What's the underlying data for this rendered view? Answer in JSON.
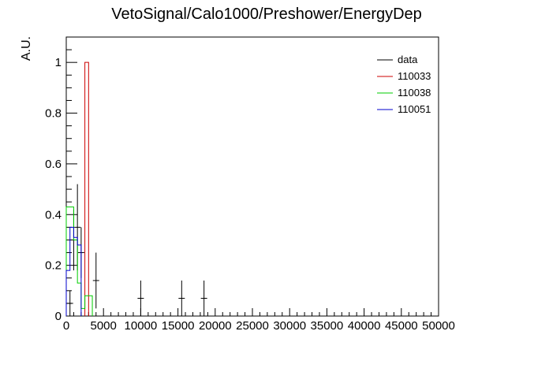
{
  "chart_data": {
    "type": "histogram",
    "title": "VetoSignal/Calo1000/Preshower/EnergyDep",
    "ylabel": "A.U.",
    "xlabel": "",
    "xlim": [
      0,
      50000
    ],
    "ylim": [
      0,
      1.1
    ],
    "x_ticks": [
      "0",
      "5000",
      "10000",
      "15000",
      "20000",
      "25000",
      "30000",
      "35000",
      "40000",
      "45000",
      "50000"
    ],
    "y_ticks": [
      "0",
      "0.2",
      "0.4",
      "0.6",
      "0.8",
      "1"
    ],
    "legend_position": "top-right",
    "series": [
      {
        "name": "data",
        "color": "#000000",
        "style": "points-with-errors",
        "points": [
          {
            "x": 500,
            "y": 0.05,
            "err": 0.05
          },
          {
            "x": 1000,
            "y": 0.3,
            "err": 0.12
          },
          {
            "x": 1500,
            "y": 0.35,
            "err": 0.17
          },
          {
            "x": 2000,
            "y": 0.25,
            "err": 0.1
          },
          {
            "x": 4000,
            "y": 0.14,
            "err": 0.11
          },
          {
            "x": 10000,
            "y": 0.07,
            "err": 0.07
          },
          {
            "x": 15500,
            "y": 0.07,
            "err": 0.07
          },
          {
            "x": 18500,
            "y": 0.07,
            "err": 0.07
          }
        ]
      },
      {
        "name": "110033",
        "color": "#cc0000",
        "style": "step",
        "bins": [
          {
            "x0": 2500,
            "x1": 3000,
            "y": 1.0
          }
        ]
      },
      {
        "name": "110038",
        "color": "#00cc00",
        "style": "step",
        "bins": [
          {
            "x0": 0,
            "x1": 500,
            "y": 0.43
          },
          {
            "x0": 500,
            "x1": 1000,
            "y": 0.43
          },
          {
            "x0": 1000,
            "x1": 1500,
            "y": 0.3
          },
          {
            "x0": 1500,
            "x1": 2000,
            "y": 0.13
          },
          {
            "x0": 2000,
            "x1": 2500,
            "y": 0.03
          },
          {
            "x0": 2500,
            "x1": 3000,
            "y": 0.08
          },
          {
            "x0": 3000,
            "x1": 3500,
            "y": 0.08
          }
        ]
      },
      {
        "name": "110051",
        "color": "#0000cc",
        "style": "step",
        "bins": [
          {
            "x0": 0,
            "x1": 500,
            "y": 0.18
          },
          {
            "x0": 500,
            "x1": 1000,
            "y": 0.35
          },
          {
            "x0": 1000,
            "x1": 1500,
            "y": 0.31
          },
          {
            "x0": 1500,
            "x1": 2000,
            "y": 0.28
          }
        ]
      }
    ]
  }
}
